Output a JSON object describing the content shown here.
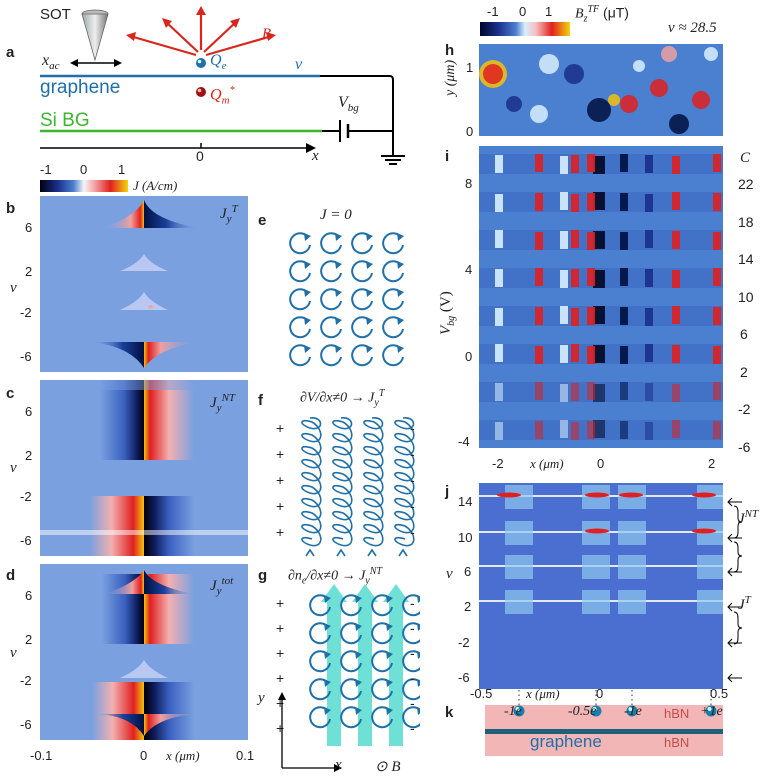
{
  "panels": {
    "a": "a",
    "b": "b",
    "c": "c",
    "d": "d",
    "e": "e",
    "f": "f",
    "g": "g",
    "h": "h",
    "i": "i",
    "j": "j",
    "k": "k"
  },
  "schematic": {
    "sot": "SOT",
    "x_ac": "x",
    "x_ac_sub": "ac",
    "qe": "Q",
    "qe_sub": "e",
    "qm": "Q",
    "qm_sub": "m",
    "qm_sup": "*",
    "b_label": "B",
    "v_label": "v",
    "graphene": "graphene",
    "si_bg": "Si BG",
    "vbg": "V",
    "vbg_sub": "bg",
    "zero": "0",
    "x": "x"
  },
  "j_colorbar": {
    "ticks": [
      "-1",
      "0",
      "1"
    ],
    "label": "J (A/cm)"
  },
  "left_maps": {
    "nu_label": "ν",
    "ticks_b": [
      "6",
      "2",
      "-2",
      "-6"
    ],
    "ticks_c": [
      "6",
      "2",
      "-2",
      "-6"
    ],
    "ticks_d": [
      "6",
      "2",
      "-2",
      "-6"
    ],
    "x_ticks": [
      "-0.1",
      "0",
      "0.1"
    ],
    "x_label": "x (μm)",
    "b_title": "J",
    "b_sub": "y",
    "b_sup": "T",
    "c_title": "J",
    "c_sub": "y",
    "c_sup": "NT",
    "d_title": "J",
    "d_sub": "y",
    "d_sup": "tot"
  },
  "cartoons": {
    "e_title": "J = 0",
    "f_title": "∂V/∂x≠0 → J",
    "f_sub": "y",
    "f_sup": "T",
    "g_title": "∂n",
    "g_title_sub": "e",
    "g_title_rest": "/∂x≠0 → J",
    "g_sub": "y",
    "g_sup": "NT",
    "plus": "+",
    "minus": "-",
    "axis_y": "y",
    "axis_x": "x",
    "axis_b": "⊙ B"
  },
  "bz_colorbar": {
    "ticks": [
      "-1",
      "0",
      "1"
    ],
    "label": "B",
    "label_sub": "z",
    "label_sup": "TF",
    "label_unit": "(μT)",
    "nu_value": "ν ≈ 28.5"
  },
  "panel_h": {
    "y_label": "y (μm)",
    "y_ticks": [
      "1",
      "0"
    ]
  },
  "panel_i": {
    "y_label": "V",
    "y_label_sub": "bg",
    "y_label_unit": "(V)",
    "y_ticks": [
      "8",
      "4",
      "0",
      "-4"
    ],
    "x_ticks": [
      "-2",
      "0",
      "2"
    ],
    "x_label": "x (μm)",
    "c_header": "C",
    "c_values": [
      "22",
      "18",
      "14",
      "10",
      "6",
      "2",
      "-2",
      "-6"
    ]
  },
  "panel_j": {
    "nu_label": "ν",
    "y_ticks": [
      "14",
      "10",
      "6",
      "2",
      "-2",
      "-6"
    ],
    "x_ticks": [
      "-0.5",
      "0",
      "0.5"
    ],
    "x_label": "x (μm)",
    "jnt": "J",
    "jnt_sup": "NT",
    "jt": "J",
    "jt_sup": "T"
  },
  "panel_k": {
    "charges": [
      "-1e",
      "-0.5e",
      "-1e",
      "+1e"
    ],
    "hbn_top": "hBN",
    "hbn_bottom": "hBN",
    "graphene": "graphene"
  },
  "colors": {
    "blue": "#1f6fa8",
    "green": "#3cb52f",
    "red": "#d9261c",
    "teal": "#6fe0d6",
    "pink": "#f3b6b6"
  }
}
